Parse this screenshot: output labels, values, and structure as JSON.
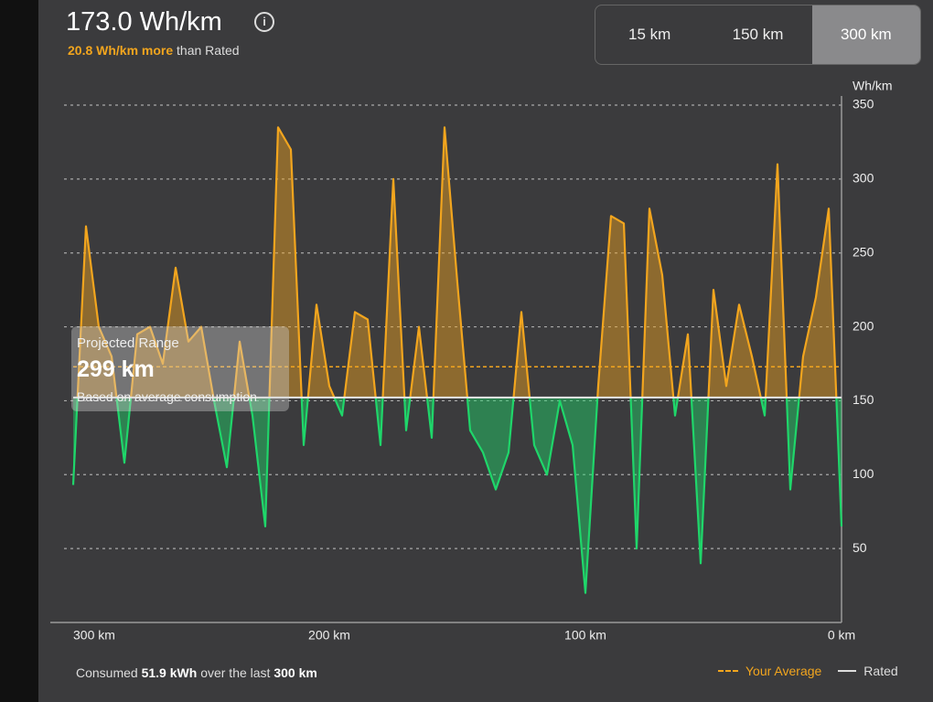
{
  "header": {
    "title": "173.0 Wh/km",
    "delta": "20.8 Wh/km more",
    "delta_suffix": "than Rated"
  },
  "tabs": [
    "15 km",
    "150 km",
    "300 km"
  ],
  "selected_tab": 2,
  "projected_range": {
    "label": "Projected Range",
    "value": "299 km",
    "note": "Based on average consumption"
  },
  "footer": {
    "prefix": "Consumed",
    "energy": "51.9 kWh",
    "middle": "over the last",
    "distance": "300 km"
  },
  "chart_data": {
    "type": "area",
    "y_label": "Wh/km",
    "x": [
      300,
      295,
      290,
      285,
      280,
      275,
      270,
      265,
      260,
      255,
      250,
      245,
      240,
      235,
      230,
      225,
      220,
      215,
      210,
      205,
      200,
      195,
      190,
      185,
      180,
      175,
      170,
      165,
      160,
      155,
      150,
      145,
      140,
      135,
      130,
      125,
      120,
      115,
      110,
      105,
      100,
      95,
      90,
      85,
      80,
      75,
      70,
      65,
      60,
      55,
      50,
      45,
      40,
      35,
      30,
      25,
      20,
      15,
      10,
      5,
      0
    ],
    "values": [
      93,
      268,
      200,
      180,
      108,
      195,
      200,
      175,
      240,
      190,
      200,
      150,
      105,
      190,
      140,
      65,
      335,
      320,
      120,
      215,
      160,
      140,
      210,
      205,
      120,
      300,
      130,
      200,
      125,
      335,
      230,
      130,
      115,
      90,
      115,
      210,
      120,
      100,
      150,
      120,
      20,
      160,
      275,
      270,
      50,
      280,
      235,
      140,
      195,
      40,
      225,
      160,
      215,
      180,
      140,
      310,
      90,
      180,
      220,
      280,
      65
    ],
    "color_above": "#f2a51e",
    "color_below": "#1fd66a",
    "average": 173.0,
    "average_label": "Your Average",
    "rated": 152.2,
    "rated_label": "Rated",
    "xlim": [
      300,
      0
    ],
    "xticks": [
      {
        "value": 300,
        "label": "300 km"
      },
      {
        "value": 200,
        "label": "200 km"
      },
      {
        "value": 100,
        "label": "100 km"
      },
      {
        "value": 0,
        "label": "0 km"
      }
    ],
    "ylim": [
      0,
      350
    ],
    "yticks": [
      50,
      100,
      150,
      200,
      250,
      300,
      350
    ],
    "grid": true
  }
}
